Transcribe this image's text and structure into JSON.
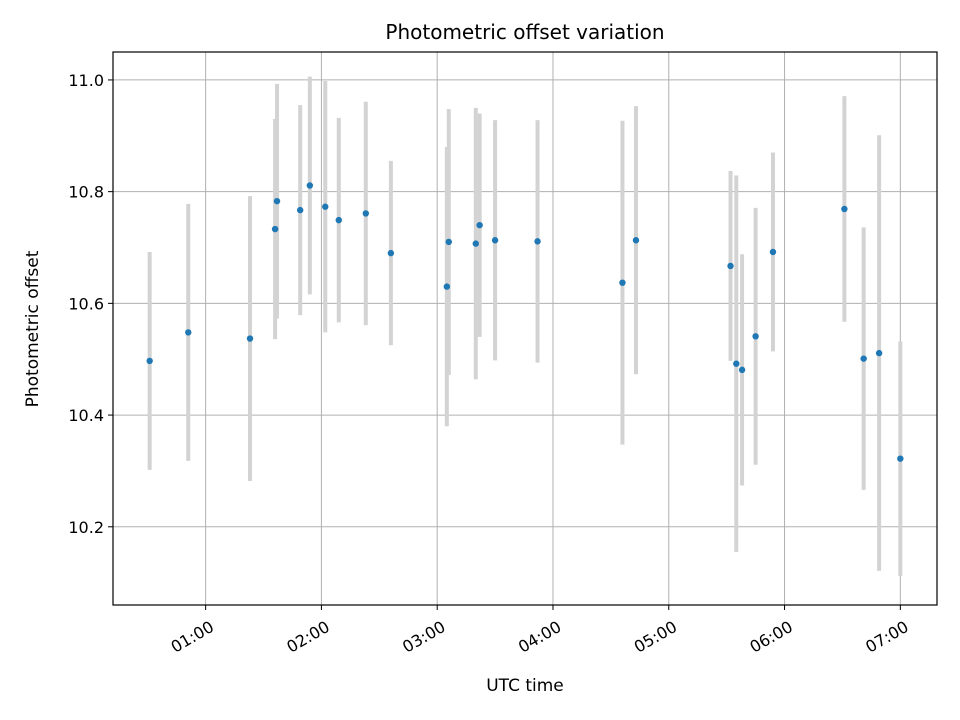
{
  "chart_data": {
    "type": "scatter",
    "title": "Photometric offset variation",
    "xlabel": "UTC time",
    "ylabel": "Photometric offset",
    "x_tick_labels": [
      "01:00",
      "02:00",
      "03:00",
      "04:00",
      "05:00",
      "06:00",
      "07:00"
    ],
    "x_tick_hours": [
      1,
      2,
      3,
      4,
      5,
      6,
      7
    ],
    "y_ticks": [
      10.2,
      10.4,
      10.6,
      10.8,
      11.0
    ],
    "y_tick_labels": [
      "10.2",
      "10.4",
      "10.6",
      "10.8",
      "11.0"
    ],
    "xlim": [
      "00:12",
      "07:19"
    ],
    "ylim": [
      10.06,
      11.05
    ],
    "grid": true,
    "colors": {
      "point": "#1f77b4",
      "errorbar": "#d3d3d3",
      "grid": "#b0b0b0"
    },
    "points": [
      {
        "time": "00:31",
        "y": 10.497,
        "err": 0.195
      },
      {
        "time": "00:51",
        "y": 10.548,
        "err": 0.23
      },
      {
        "time": "01:23",
        "y": 10.537,
        "err": 0.255
      },
      {
        "time": "01:36",
        "y": 10.733,
        "err": 0.197
      },
      {
        "time": "01:37",
        "y": 10.783,
        "err": 0.21
      },
      {
        "time": "01:49",
        "y": 10.767,
        "err": 0.188
      },
      {
        "time": "01:54",
        "y": 10.811,
        "err": 0.195
      },
      {
        "time": "02:02",
        "y": 10.773,
        "err": 0.225
      },
      {
        "time": "02:09",
        "y": 10.749,
        "err": 0.183
      },
      {
        "time": "02:23",
        "y": 10.761,
        "err": 0.2
      },
      {
        "time": "02:36",
        "y": 10.69,
        "err": 0.165
      },
      {
        "time": "03:05",
        "y": 10.63,
        "err": 0.25
      },
      {
        "time": "03:06",
        "y": 10.71,
        "err": 0.238
      },
      {
        "time": "03:20",
        "y": 10.707,
        "err": 0.243
      },
      {
        "time": "03:22",
        "y": 10.74,
        "err": 0.2
      },
      {
        "time": "03:30",
        "y": 10.713,
        "err": 0.215
      },
      {
        "time": "03:52",
        "y": 10.711,
        "err": 0.217
      },
      {
        "time": "04:36",
        "y": 10.637,
        "err": 0.29
      },
      {
        "time": "04:43",
        "y": 10.713,
        "err": 0.24
      },
      {
        "time": "05:32",
        "y": 10.667,
        "err": 0.17
      },
      {
        "time": "05:35",
        "y": 10.492,
        "err": 0.337
      },
      {
        "time": "05:38",
        "y": 10.481,
        "err": 0.207
      },
      {
        "time": "05:45",
        "y": 10.541,
        "err": 0.23
      },
      {
        "time": "05:54",
        "y": 10.692,
        "err": 0.178
      },
      {
        "time": "06:31",
        "y": 10.769,
        "err": 0.202
      },
      {
        "time": "06:41",
        "y": 10.501,
        "err": 0.235
      },
      {
        "time": "06:49",
        "y": 10.511,
        "err": 0.39
      },
      {
        "time": "07:00",
        "y": 10.322,
        "err": 0.21
      }
    ]
  }
}
